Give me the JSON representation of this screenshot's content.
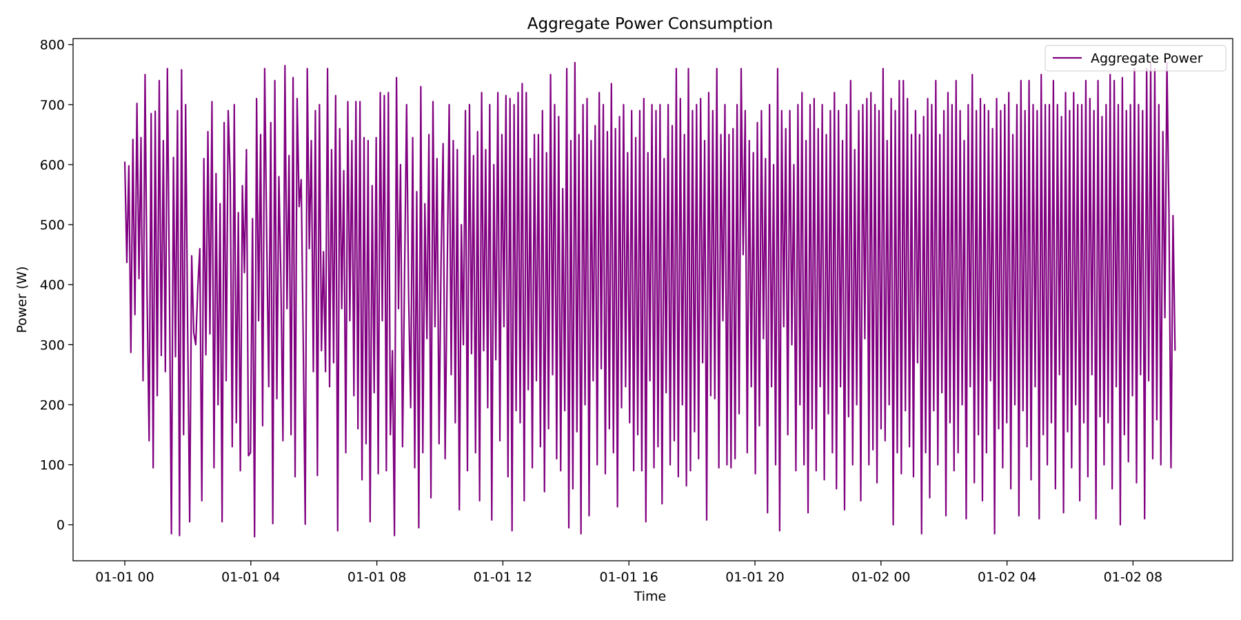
{
  "chart_data": {
    "type": "line",
    "title": "Aggregate Power Consumption",
    "xlabel": "Time",
    "ylabel": "Power (W)",
    "x_start": "01-01 00:00",
    "x_end": "01-02 09:20",
    "x_ticks": [
      "01-01 00",
      "01-01 04",
      "01-01 08",
      "01-01 12",
      "01-01 16",
      "01-01 20",
      "01-02 00",
      "01-02 04",
      "01-02 08"
    ],
    "y_ticks": [
      0,
      100,
      200,
      300,
      400,
      500,
      600,
      700,
      800
    ],
    "ylim": [
      -60,
      810
    ],
    "legend_position": "top-right",
    "grid": false,
    "series": [
      {
        "name": "Aggregate Power",
        "color": "#800080",
        "approx_range": [
          -20,
          770
        ],
        "approx_points": 560,
        "values": [
          605,
          437,
          598,
          287,
          642,
          350,
          702,
          410,
          645,
          240,
          750,
          380,
          140,
          685,
          95,
          689,
          215,
          740,
          282,
          640,
          255,
          760,
          402,
          -15,
          612,
          280,
          690,
          -18,
          758,
          150,
          700,
          330,
          5,
          448,
          320,
          300,
          395,
          460,
          40,
          610,
          283,
          655,
          318,
          705,
          95,
          585,
          200,
          535,
          5,
          670,
          240,
          690,
          580,
          130,
          700,
          170,
          520,
          90,
          565,
          420,
          625,
          115,
          120,
          510,
          -20,
          710,
          340,
          650,
          165,
          760,
          475,
          230,
          670,
          2,
          740,
          210,
          580,
          410,
          140,
          765,
          360,
          615,
          150,
          745,
          80,
          710,
          530,
          575,
          310,
          1,
          760,
          460,
          640,
          255,
          690,
          82,
          700,
          290,
          455,
          255,
          760,
          230,
          625,
          270,
          715,
          -10,
          660,
          360,
          590,
          120,
          705,
          340,
          640,
          215,
          705,
          160,
          705,
          75,
          645,
          135,
          640,
          5,
          565,
          220,
          645,
          85,
          720,
          340,
          715,
          90,
          720,
          150,
          290,
          -18,
          745,
          360,
          600,
          130,
          420,
          700,
          380,
          195,
          645,
          95,
          555,
          -5,
          730,
          120,
          535,
          310,
          650,
          45,
          705,
          330,
          610,
          135,
          440,
          635,
          110,
          420,
          700,
          250,
          640,
          170,
          625,
          25,
          500,
          300,
          690,
          90,
          700,
          285,
          615,
          120,
          655,
          40,
          720,
          290,
          625,
          195,
          700,
          8,
          600,
          275,
          720,
          140,
          650,
          330,
          715,
          80,
          710,
          -10,
          700,
          190,
          720,
          170,
          735,
          40,
          720,
          225,
          610,
          95,
          650,
          240,
          650,
          130,
          690,
          55,
          620,
          160,
          750,
          250,
          700,
          110,
          680,
          90,
          560,
          190,
          760,
          -5,
          640,
          60,
          770,
          155,
          650,
          -15,
          700,
          200,
          710,
          15,
          640,
          240,
          665,
          100,
          720,
          260,
          700,
          85,
          655,
          160,
          735,
          120,
          660,
          30,
          680,
          195,
          700,
          230,
          620,
          170,
          690,
          90,
          645,
          150,
          690,
          90,
          710,
          5,
          620,
          240,
          700,
          95,
          690,
          130,
          700,
          35,
          610,
          220,
          700,
          100,
          665,
          140,
          760,
          80,
          710,
          200,
          650,
          65,
          760,
          90,
          690,
          155,
          700,
          110,
          710,
          270,
          640,
          8,
          720,
          215,
          690,
          210,
          760,
          95,
          650,
          340,
          700,
          100,
          650,
          95,
          660,
          110,
          700,
          185,
          760,
          450,
          690,
          120,
          640,
          230,
          620,
          85,
          670,
          165,
          690,
          310,
          610,
          20,
          700,
          230,
          600,
          100,
          760,
          -10,
          690,
          330,
          660,
          150,
          690,
          300,
          600,
          90,
          700,
          200,
          720,
          100,
          640,
          20,
          700,
          160,
          710,
          90,
          660,
          230,
          700,
          75,
          650,
          185,
          690,
          120,
          720,
          60,
          690,
          230,
          640,
          25,
          700,
          180,
          740,
          100,
          625,
          200,
          690,
          40,
          700,
          310,
          710,
          100,
          720,
          125,
          700,
          70,
          690,
          160,
          760,
          140,
          640,
          200,
          710,
          0,
          690,
          120,
          740,
          85,
          740,
          190,
          710,
          130,
          650,
          80,
          690,
          270,
          650,
          -15,
          680,
          120,
          710,
          45,
          700,
          190,
          740,
          100,
          650,
          220,
          690,
          15,
          720,
          170,
          700,
          90,
          740,
          120,
          690,
          200,
          640,
          10,
          700,
          230,
          750,
          70,
          690,
          150,
          710,
          40,
          700,
          120,
          690,
          240,
          660,
          -15,
          710,
          160,
          690,
          95,
          700,
          170,
          720,
          60,
          650,
          200,
          700,
          15,
          740,
          190,
          690,
          130,
          740,
          75,
          700,
          230,
          690,
          10,
          750,
          150,
          700,
          100,
          700,
          170,
          740,
          60,
          700,
          250,
          680,
          20,
          720,
          155,
          690,
          95,
          720,
          200,
          700,
          40,
          700,
          170,
          740,
          80,
          710,
          250,
          690,
          10,
          740,
          180,
          680,
          100,
          700,
          170,
          750,
          60,
          740,
          230,
          700,
          0,
          745,
          150,
          690,
          105,
          700,
          215,
          760,
          70,
          700,
          250,
          690,
          10,
          760,
          240,
          770,
          110,
          760,
          175,
          700,
          100,
          655,
          345,
          770,
          520,
          95,
          515,
          290
        ]
      }
    ]
  }
}
